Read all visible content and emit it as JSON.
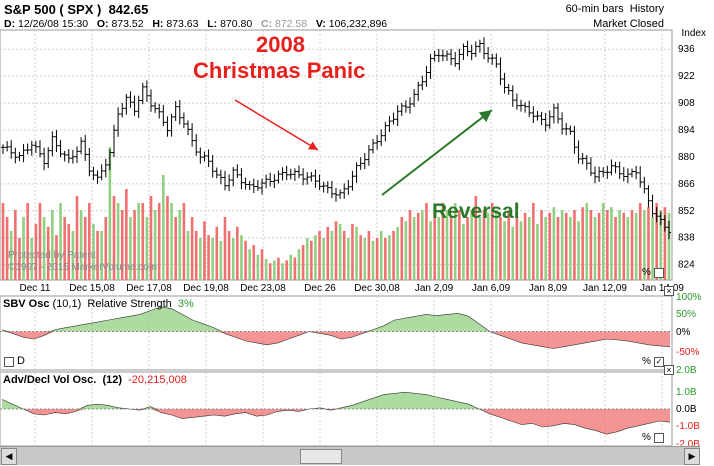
{
  "header": {
    "symbol": "S&P 500",
    "ticker": "( SPX )",
    "price": "842.65",
    "bar_info": "60-min bars",
    "history_label": "History",
    "market_status": "Market Closed",
    "index_label": "Index"
  },
  "ohlc": {
    "d_label": "D:",
    "d_value": "12/26/08 15:30",
    "o_label": "O:",
    "o_value": "873.52",
    "h_label": "H:",
    "h_value": "873.63",
    "l_label": "L:",
    "l_value": "870.80",
    "c_label": "C:",
    "c_value": "872.58",
    "v_label": "V:",
    "v_value": "106,232,896"
  },
  "annotations": {
    "line1": "2008",
    "line2": "Christmas Panic",
    "reversal": "Reversal",
    "protected": "Protected by Patent",
    "copyright": "©1997 - 2015 MarketVolume.com"
  },
  "panels": {
    "sbv_title": "SBV Osc",
    "sbv_params": "(10,1)",
    "sbv_rs_label": "Relative Strength",
    "sbv_rs_value": "3%",
    "sbv_d_label": "D",
    "adv_title": "Adv/Decl Vol Osc.",
    "adv_params": "(12)",
    "adv_value": "-20,215,008",
    "pct_symbol": "%"
  },
  "colors": {
    "up": "#90d080",
    "down": "#f07070",
    "candle": "#000000",
    "red_text": "#e8201c",
    "green_text": "#2a7a2a",
    "grid": "#d0d0d0"
  },
  "chart_data": {
    "type": "candlestick",
    "x_tick_labels": [
      "Dec 11",
      "Dec 15,08",
      "Dec 17,08",
      "Dec 19,08",
      "Dec 23,08",
      "Dec 26",
      "Dec 30,08",
      "Jan 2,09",
      "Jan 6,09",
      "Jan 8,09",
      "Jan 12,09",
      "Jan 14,09"
    ],
    "y_ticks": [
      824,
      838,
      852,
      866,
      880,
      894,
      908,
      922,
      936
    ],
    "ylim": [
      816,
      946
    ],
    "price_path": [
      [
        0,
        885
      ],
      [
        4,
        880
      ],
      [
        7,
        887
      ],
      [
        10,
        878
      ],
      [
        12,
        889
      ],
      [
        14,
        883
      ],
      [
        16,
        878
      ],
      [
        19,
        887
      ],
      [
        21,
        874
      ],
      [
        23,
        868
      ],
      [
        26,
        882
      ],
      [
        28,
        903
      ],
      [
        30,
        910
      ],
      [
        32,
        905
      ],
      [
        34,
        915
      ],
      [
        36,
        908
      ],
      [
        38,
        902
      ],
      [
        40,
        895
      ],
      [
        42,
        905
      ],
      [
        44,
        898
      ],
      [
        46,
        888
      ],
      [
        48,
        880
      ],
      [
        50,
        878
      ],
      [
        52,
        870
      ],
      [
        54,
        866
      ],
      [
        56,
        872
      ],
      [
        58,
        868
      ],
      [
        60,
        864
      ],
      [
        63,
        866
      ],
      [
        65,
        868
      ],
      [
        67,
        870
      ],
      [
        69,
        872
      ],
      [
        71,
        871
      ],
      [
        73,
        870
      ],
      [
        76,
        868
      ],
      [
        78,
        864
      ],
      [
        80,
        862
      ],
      [
        82,
        860
      ],
      [
        84,
        866
      ],
      [
        86,
        874
      ],
      [
        88,
        880
      ],
      [
        90,
        886
      ],
      [
        92,
        892
      ],
      [
        94,
        898
      ],
      [
        96,
        904
      ],
      [
        98,
        906
      ],
      [
        100,
        912
      ],
      [
        102,
        920
      ],
      [
        104,
        930
      ],
      [
        106,
        934
      ],
      [
        108,
        932
      ],
      [
        110,
        930
      ],
      [
        112,
        936
      ],
      [
        114,
        935
      ],
      [
        116,
        938
      ],
      [
        118,
        932
      ],
      [
        120,
        928
      ],
      [
        122,
        916
      ],
      [
        124,
        910
      ],
      [
        126,
        906
      ],
      [
        128,
        904
      ],
      [
        130,
        900
      ],
      [
        132,
        898
      ],
      [
        134,
        904
      ],
      [
        136,
        896
      ],
      [
        138,
        892
      ],
      [
        140,
        880
      ],
      [
        142,
        876
      ],
      [
        144,
        870
      ],
      [
        146,
        872
      ],
      [
        148,
        875
      ],
      [
        150,
        872
      ],
      [
        152,
        870
      ],
      [
        154,
        873
      ],
      [
        156,
        862
      ],
      [
        158,
        852
      ],
      [
        160,
        846
      ],
      [
        162,
        842
      ]
    ],
    "volume_bars": [
      [
        0,
        "d",
        0.55
      ],
      [
        1,
        "d",
        0.45
      ],
      [
        2,
        "u",
        0.35
      ],
      [
        3,
        "d",
        0.5
      ],
      [
        4,
        "d",
        0.3
      ],
      [
        5,
        "u",
        0.45
      ],
      [
        6,
        "d",
        0.55
      ],
      [
        7,
        "u",
        0.3
      ],
      [
        8,
        "d",
        0.4
      ],
      [
        9,
        "d",
        0.55
      ],
      [
        10,
        "u",
        0.45
      ],
      [
        11,
        "d",
        0.38
      ],
      [
        12,
        "u",
        0.5
      ],
      [
        13,
        "d",
        0.32
      ],
      [
        14,
        "u",
        0.55
      ],
      [
        15,
        "d",
        0.45
      ],
      [
        16,
        "d",
        0.4
      ],
      [
        17,
        "u",
        0.35
      ],
      [
        18,
        "d",
        0.6
      ],
      [
        19,
        "u",
        0.5
      ],
      [
        20,
        "d",
        0.45
      ],
      [
        21,
        "d",
        0.55
      ],
      [
        22,
        "u",
        0.4
      ],
      [
        23,
        "d",
        0.35
      ],
      [
        24,
        "u",
        0.35
      ],
      [
        25,
        "d",
        0.45
      ],
      [
        26,
        "u",
        0.95
      ],
      [
        27,
        "d",
        0.6
      ],
      [
        28,
        "u",
        0.55
      ],
      [
        29,
        "d",
        0.5
      ],
      [
        30,
        "d",
        0.65
      ],
      [
        31,
        "u",
        0.45
      ],
      [
        32,
        "d",
        0.5
      ],
      [
        33,
        "u",
        0.55
      ],
      [
        34,
        "d",
        0.55
      ],
      [
        35,
        "u",
        0.45
      ],
      [
        36,
        "d",
        0.6
      ],
      [
        37,
        "u",
        0.5
      ],
      [
        38,
        "d",
        0.55
      ],
      [
        39,
        "u",
        0.75
      ],
      [
        40,
        "d",
        0.6
      ],
      [
        41,
        "u",
        0.55
      ],
      [
        42,
        "d",
        0.45
      ],
      [
        43,
        "u",
        0.5
      ],
      [
        44,
        "d",
        0.55
      ],
      [
        45,
        "u",
        0.35
      ],
      [
        46,
        "d",
        0.45
      ],
      [
        47,
        "d",
        0.35
      ],
      [
        48,
        "u",
        0.3
      ],
      [
        49,
        "d",
        0.42
      ],
      [
        50,
        "d",
        0.32
      ],
      [
        51,
        "u",
        0.3
      ],
      [
        52,
        "d",
        0.38
      ],
      [
        53,
        "u",
        0.28
      ],
      [
        54,
        "d",
        0.45
      ],
      [
        55,
        "d",
        0.35
      ],
      [
        56,
        "u",
        0.3
      ],
      [
        57,
        "d",
        0.38
      ],
      [
        58,
        "u",
        0.32
      ],
      [
        59,
        "d",
        0.28
      ],
      [
        60,
        "u",
        0.22
      ],
      [
        61,
        "d",
        0.25
      ],
      [
        62,
        "u",
        0.18
      ],
      [
        63,
        "d",
        0.22
      ],
      [
        64,
        "u",
        0.15
      ],
      [
        65,
        "d",
        0.12
      ],
      [
        66,
        "u",
        0.14
      ],
      [
        67,
        "d",
        0.16
      ],
      [
        68,
        "u",
        0.12
      ],
      [
        69,
        "d",
        0.14
      ],
      [
        70,
        "u",
        0.18
      ],
      [
        71,
        "d",
        0.16
      ],
      [
        72,
        "u",
        0.22
      ],
      [
        73,
        "d",
        0.25
      ],
      [
        74,
        "u",
        0.3
      ],
      [
        75,
        "d",
        0.28
      ],
      [
        76,
        "u",
        0.32
      ],
      [
        77,
        "d",
        0.35
      ],
      [
        78,
        "u",
        0.3
      ],
      [
        79,
        "d",
        0.38
      ],
      [
        80,
        "u",
        0.35
      ],
      [
        81,
        "d",
        0.42
      ],
      [
        82,
        "u",
        0.4
      ],
      [
        83,
        "d",
        0.35
      ],
      [
        84,
        "u",
        0.3
      ],
      [
        85,
        "d",
        0.4
      ],
      [
        86,
        "u",
        0.38
      ],
      [
        87,
        "d",
        0.32
      ],
      [
        88,
        "u",
        0.3
      ],
      [
        89,
        "d",
        0.35
      ],
      [
        90,
        "u",
        0.28
      ],
      [
        91,
        "d",
        0.3
      ],
      [
        92,
        "u",
        0.35
      ],
      [
        93,
        "d",
        0.3
      ],
      [
        94,
        "u",
        0.32
      ],
      [
        95,
        "d",
        0.35
      ],
      [
        96,
        "u",
        0.38
      ],
      [
        97,
        "d",
        0.45
      ],
      [
        98,
        "u",
        0.42
      ],
      [
        99,
        "d",
        0.5
      ],
      [
        100,
        "u",
        0.45
      ],
      [
        101,
        "d",
        0.48
      ],
      [
        102,
        "u",
        0.5
      ],
      [
        103,
        "d",
        0.55
      ],
      [
        104,
        "u",
        0.42
      ],
      [
        105,
        "d",
        0.5
      ],
      [
        106,
        "u",
        0.45
      ],
      [
        107,
        "d",
        0.55
      ],
      [
        108,
        "u",
        0.5
      ],
      [
        109,
        "d",
        0.45
      ],
      [
        110,
        "u",
        0.55
      ],
      [
        111,
        "d",
        0.5
      ],
      [
        112,
        "u",
        0.4
      ],
      [
        113,
        "d",
        0.45
      ],
      [
        114,
        "u",
        0.5
      ],
      [
        115,
        "d",
        0.6
      ],
      [
        116,
        "u",
        0.45
      ],
      [
        117,
        "d",
        0.5
      ],
      [
        118,
        "u",
        0.48
      ],
      [
        119,
        "d",
        0.55
      ],
      [
        120,
        "u",
        0.5
      ],
      [
        121,
        "d",
        0.45
      ],
      [
        122,
        "u",
        0.42
      ],
      [
        123,
        "d",
        0.5
      ],
      [
        124,
        "u",
        0.38
      ],
      [
        125,
        "d",
        0.45
      ],
      [
        126,
        "u",
        0.42
      ],
      [
        127,
        "d",
        0.48
      ],
      [
        128,
        "u",
        0.45
      ],
      [
        129,
        "d",
        0.55
      ],
      [
        130,
        "u",
        0.4
      ],
      [
        131,
        "d",
        0.5
      ],
      [
        132,
        "u",
        0.45
      ],
      [
        133,
        "d",
        0.48
      ],
      [
        134,
        "u",
        0.52
      ],
      [
        135,
        "d",
        0.45
      ],
      [
        136,
        "u",
        0.5
      ],
      [
        137,
        "d",
        0.48
      ],
      [
        138,
        "u",
        0.45
      ],
      [
        139,
        "d",
        0.5
      ],
      [
        140,
        "u",
        0.42
      ],
      [
        141,
        "d",
        0.52
      ],
      [
        142,
        "u",
        0.55
      ],
      [
        143,
        "d",
        0.5
      ],
      [
        144,
        "u",
        0.45
      ],
      [
        145,
        "d",
        0.48
      ],
      [
        146,
        "u",
        0.55
      ],
      [
        147,
        "d",
        0.5
      ],
      [
        148,
        "u",
        0.52
      ],
      [
        149,
        "d",
        0.45
      ],
      [
        150,
        "u",
        0.5
      ],
      [
        151,
        "d",
        0.48
      ],
      [
        152,
        "u",
        0.45
      ],
      [
        153,
        "d",
        0.5
      ],
      [
        154,
        "u",
        0.48
      ],
      [
        155,
        "d",
        0.55
      ],
      [
        156,
        "u",
        0.5
      ],
      [
        157,
        "d",
        0.52
      ],
      [
        158,
        "u",
        0.45
      ],
      [
        159,
        "d",
        0.55
      ],
      [
        160,
        "u",
        0.5
      ],
      [
        161,
        "d",
        0.52
      ],
      [
        162,
        "u",
        0.48
      ]
    ],
    "sbv_osc": {
      "y_ticks": [
        "100%",
        "50%",
        "0%",
        "-50%"
      ],
      "values": [
        0.05,
        -0.05,
        -0.15,
        -0.2,
        -0.1,
        0.05,
        0.1,
        0.15,
        0.2,
        0.25,
        0.3,
        0.35,
        0.4,
        0.45,
        0.55,
        0.65,
        0.6,
        0.45,
        0.3,
        0.2,
        0.1,
        -0.05,
        -0.15,
        -0.25,
        -0.3,
        -0.35,
        -0.3,
        -0.2,
        -0.1,
        0.0,
        -0.05,
        -0.1,
        -0.2,
        -0.15,
        -0.05,
        0.05,
        0.15,
        0.3,
        0.35,
        0.4,
        0.45,
        0.42,
        0.45,
        0.48,
        0.4,
        0.2,
        0.0,
        -0.1,
        -0.2,
        -0.3,
        -0.35,
        -0.4,
        -0.45,
        -0.4,
        -0.35,
        -0.3,
        -0.25,
        -0.2,
        -0.22,
        -0.25,
        -0.3,
        -0.35,
        -0.38,
        -0.4
      ]
    },
    "adv_decl_osc": {
      "y_ticks": [
        "2.0B",
        "1.0B",
        "0.0B",
        "-1.0B",
        "-2.0B"
      ],
      "values": [
        0.4,
        0.2,
        0.0,
        -0.2,
        -0.25,
        -0.15,
        -0.2,
        -0.1,
        0.15,
        0.2,
        0.15,
        0.05,
        0.0,
        -0.05,
        0.1,
        -0.15,
        -0.25,
        -0.4,
        -0.35,
        -0.3,
        -0.25,
        -0.3,
        -0.2,
        -0.15,
        -0.3,
        -0.25,
        -0.1,
        -0.05,
        -0.1,
        0.0,
        0.05,
        -0.05,
        0.05,
        0.15,
        0.3,
        0.45,
        0.6,
        0.65,
        0.7,
        0.65,
        0.6,
        0.5,
        0.4,
        0.3,
        0.2,
        0.0,
        -0.2,
        -0.35,
        -0.5,
        -0.65,
        -0.6,
        -0.75,
        -0.7,
        -0.6,
        -0.65,
        -0.8,
        -0.9,
        -1.05,
        -0.95,
        -0.8,
        -0.7,
        -0.6,
        -0.5,
        -0.55
      ]
    }
  }
}
